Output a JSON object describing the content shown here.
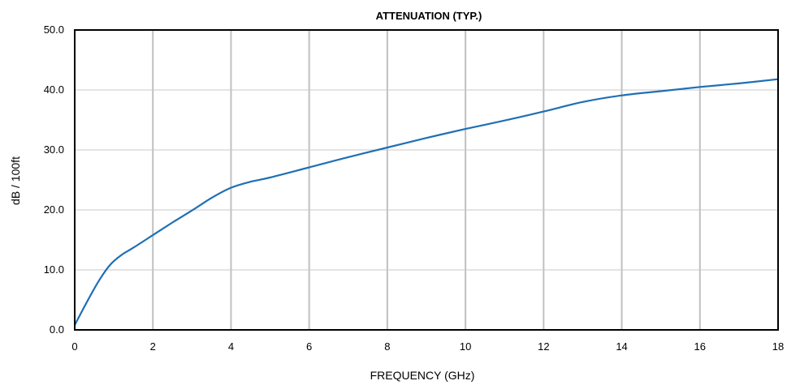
{
  "chart_data": {
    "type": "line",
    "title": "ATTENUATION (TYP.)",
    "xlabel": "FREQUENCY  (GHz)",
    "ylabel": "dB / 100ft",
    "xlim": [
      0,
      18
    ],
    "ylim": [
      0,
      50
    ],
    "x_ticks": [
      "0",
      "2",
      "4",
      "6",
      "8",
      "10",
      "12",
      "14",
      "16",
      "18"
    ],
    "y_ticks": [
      "0.0",
      "10.0",
      "20.0",
      "30.0",
      "40.0",
      "50.0"
    ],
    "grid": true,
    "series": [
      {
        "color": "#1f6fb5",
        "x": [
          0,
          0.3,
          0.6,
          0.9,
          1.2,
          1.5,
          2.0,
          2.5,
          3.0,
          3.5,
          4.0,
          4.5,
          5.0,
          6.0,
          7.0,
          8.0,
          9.0,
          10.0,
          11.0,
          12.0,
          13.0,
          14.0,
          15.0,
          16.0,
          17.0,
          18.0
        ],
        "y": [
          0.8,
          4.5,
          8.0,
          10.8,
          12.5,
          13.7,
          15.8,
          17.9,
          19.9,
          22.0,
          23.7,
          24.7,
          25.4,
          27.1,
          28.8,
          30.4,
          32.0,
          33.5,
          34.9,
          36.4,
          38.0,
          39.1,
          39.8,
          40.5,
          41.1,
          41.8
        ]
      }
    ]
  }
}
